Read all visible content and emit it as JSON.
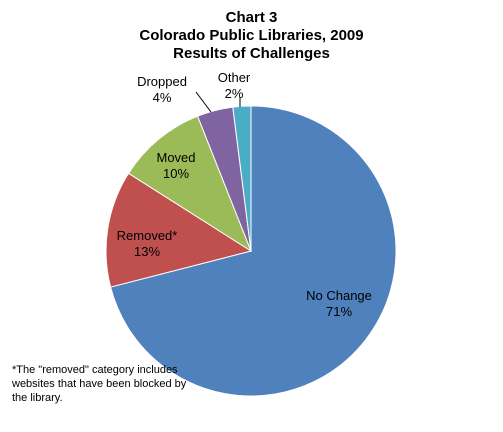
{
  "chart_data": {
    "type": "pie",
    "title_lines": [
      "Chart 3",
      "Colorado Public Libraries, 2009",
      "Results of Challenges"
    ],
    "slices": [
      {
        "label": "No Change",
        "value": 71,
        "pct_text": "71%",
        "color": "#4f81bd"
      },
      {
        "label": "Removed*",
        "value": 13,
        "pct_text": "13%",
        "color": "#c0504d"
      },
      {
        "label": "Moved",
        "value": 10,
        "pct_text": "10%",
        "color": "#9bbb59"
      },
      {
        "label": "Dropped",
        "value": 4,
        "pct_text": "4%",
        "color": "#8064a2"
      },
      {
        "label": "Other",
        "value": 2,
        "pct_text": "2%",
        "color": "#4bacc6"
      }
    ],
    "footnote": "*The \"removed\" category includes websites that have been blocked by the library."
  }
}
